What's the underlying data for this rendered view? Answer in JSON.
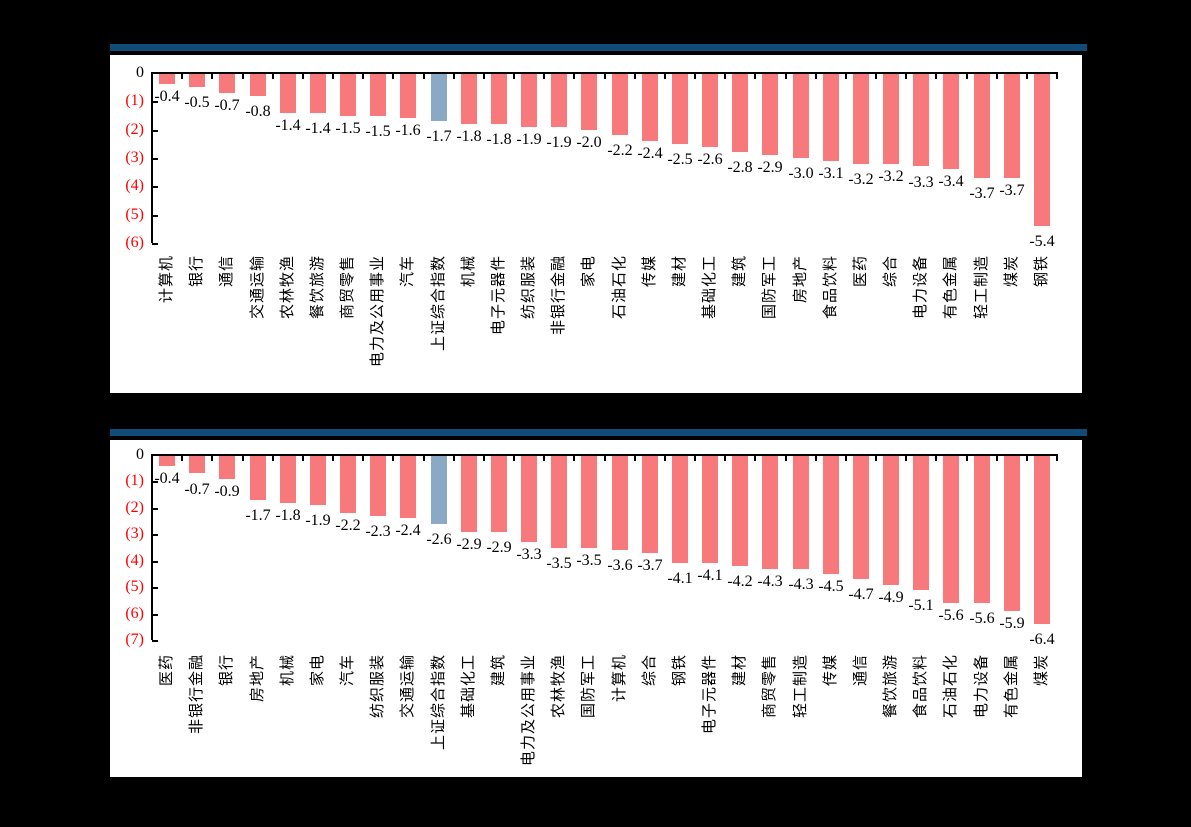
{
  "colors": {
    "background": "#000000",
    "panel": "#FFFFFF",
    "bar": "#F8797C",
    "highlight_bar": "#8AA9C5",
    "top_border_line": "#0F4C78",
    "axis_line": "#000000",
    "negative_tick_text": "#FF0000",
    "zero_tick_text": "#000000",
    "value_text": "#000000"
  },
  "chart_data": [
    {
      "type": "bar",
      "title": "",
      "xlabel": "",
      "ylabel": "",
      "ylim": [
        -6,
        0
      ],
      "yticks": [
        "0",
        "(1)",
        "(2)",
        "(3)",
        "(4)",
        "(5)",
        "(6)"
      ],
      "grid": false,
      "legend": "none",
      "bar_direction": "down",
      "highlight_category": "上证综合指数",
      "highlight_index": 9,
      "categories": [
        "计算机",
        "银行",
        "通信",
        "交通运输",
        "农林牧渔",
        "餐饮旅游",
        "商贸零售",
        "电力及公用事业",
        "汽车",
        "上证综合指数",
        "机械",
        "电子元器件",
        "纺织服装",
        "非银行金融",
        "家电",
        "石油石化",
        "传媒",
        "建材",
        "基础化工",
        "建筑",
        "国防军工",
        "房地产",
        "食品饮料",
        "医药",
        "综合",
        "电力设备",
        "有色金属",
        "轻工制造",
        "煤炭",
        "钢铁"
      ],
      "values": [
        -0.4,
        -0.5,
        -0.7,
        -0.8,
        -1.4,
        -1.4,
        -1.5,
        -1.5,
        -1.6,
        -1.7,
        -1.8,
        -1.8,
        -1.9,
        -1.9,
        -2.0,
        -2.2,
        -2.4,
        -2.5,
        -2.6,
        -2.8,
        -2.9,
        -3.0,
        -3.1,
        -3.2,
        -3.2,
        -3.3,
        -3.4,
        -3.7,
        -3.7,
        -5.4
      ]
    },
    {
      "type": "bar",
      "title": "",
      "xlabel": "",
      "ylabel": "",
      "ylim": [
        -7,
        0
      ],
      "yticks": [
        "0",
        "(1)",
        "(2)",
        "(3)",
        "(4)",
        "(5)",
        "(6)",
        "(7)"
      ],
      "grid": false,
      "legend": "none",
      "bar_direction": "down",
      "highlight_category": "上证综合指数",
      "highlight_index": 9,
      "categories": [
        "医药",
        "非银行金融",
        "银行",
        "房地产",
        "机械",
        "家电",
        "汽车",
        "纺织服装",
        "交通运输",
        "上证综合指数",
        "基础化工",
        "建筑",
        "电力及公用事业",
        "农林牧渔",
        "国防军工",
        "计算机",
        "综合",
        "钢铁",
        "电子元器件",
        "建材",
        "商贸零售",
        "轻工制造",
        "传媒",
        "通信",
        "餐饮旅游",
        "食品饮料",
        "石油石化",
        "电力设备",
        "有色金属",
        "煤炭"
      ],
      "values": [
        -0.4,
        -0.7,
        -0.9,
        -1.7,
        -1.8,
        -1.9,
        -2.2,
        -2.3,
        -2.4,
        -2.6,
        -2.9,
        -2.9,
        -3.3,
        -3.5,
        -3.5,
        -3.6,
        -3.7,
        -4.1,
        -4.1,
        -4.2,
        -4.3,
        -4.3,
        -4.5,
        -4.7,
        -4.9,
        -5.1,
        -5.6,
        -5.6,
        -5.9,
        -6.4
      ]
    }
  ]
}
